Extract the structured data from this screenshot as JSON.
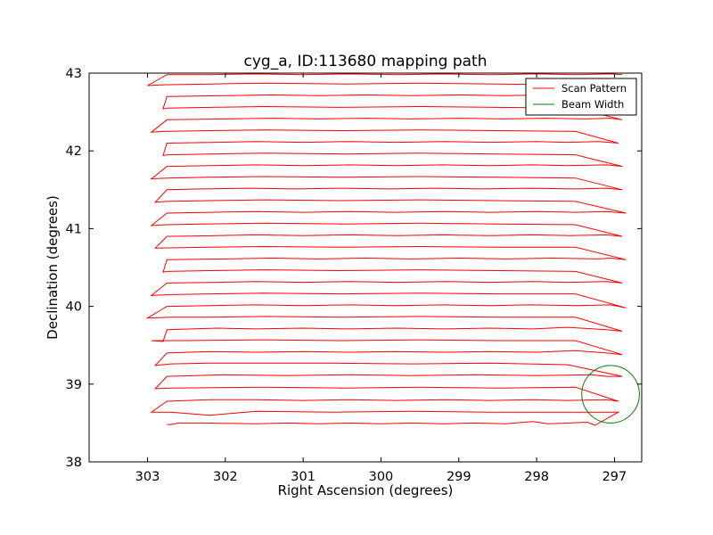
{
  "chart_data": {
    "type": "line",
    "title": "cyg_a, ID:113680 mapping path",
    "xlabel": "Right Ascension (degrees)",
    "ylabel": "Declination (degrees)",
    "xlim": [
      303.75,
      296.65
    ],
    "ylim": [
      38,
      43
    ],
    "x_ticks": [
      303,
      302,
      301,
      300,
      299,
      298,
      297
    ],
    "y_ticks": [
      38,
      39,
      40,
      41,
      42,
      43
    ],
    "grid": false,
    "legend_position": "top-right",
    "colors": {
      "scan": "#ff0000",
      "beam": "#007f00"
    },
    "series": [
      {
        "name": "Scan Pattern",
        "style": "line",
        "x": [
          302.75,
          302.7,
          302.6,
          302.3,
          301.6,
          301.2,
          300.8,
          300.4,
          300.0,
          299.6,
          299.2,
          298.8,
          298.4,
          298.05,
          297.85,
          297.35,
          297.25,
          296.95,
          297.6,
          298.6,
          299.6,
          300.6,
          301.6,
          302.2,
          302.7,
          302.95,
          302.75,
          302.2,
          301.6,
          301.0,
          300.4,
          299.8,
          299.2,
          298.6,
          298.05,
          297.6,
          297.1,
          296.95,
          297.5,
          298.5,
          299.5,
          300.5,
          301.5,
          302.7,
          302.9,
          302.75,
          302.0,
          301.2,
          300.4,
          299.6,
          298.8,
          298.0,
          297.3,
          297.1,
          296.9,
          297.6,
          298.6,
          299.6,
          300.6,
          301.2,
          301.55,
          302.2,
          302.7,
          302.9,
          302.75,
          302.2,
          301.6,
          301.0,
          300.4,
          299.8,
          299.2,
          298.6,
          298.0,
          297.5,
          297.1,
          296.9,
          297.5,
          298.5,
          299.5,
          300.5,
          301.5,
          302.5,
          302.95,
          302.8,
          302.75,
          302.1,
          301.6,
          301.0,
          300.4,
          299.8,
          299.2,
          298.6,
          298.05,
          297.6,
          297.1,
          296.9,
          297.5,
          298.5,
          299.5,
          300.5,
          301.5,
          302.2,
          302.7,
          303.0,
          302.75,
          302.2,
          301.6,
          301.0,
          300.4,
          299.8,
          299.2,
          298.6,
          298.1,
          297.5,
          297.05,
          296.85,
          297.5,
          298.5,
          299.5,
          300.5,
          301.5,
          302.2,
          302.75,
          302.95,
          302.75,
          302.1,
          301.6,
          301.0,
          300.4,
          299.8,
          299.2,
          298.6,
          298.05,
          297.6,
          297.1,
          296.9,
          297.5,
          298.5,
          299.5,
          300.5,
          301.5,
          302.2,
          302.75,
          302.8,
          302.75,
          302.0,
          301.4,
          300.8,
          300.2,
          299.6,
          299.0,
          298.4,
          297.8,
          297.2,
          297.05,
          296.85,
          297.5,
          298.5,
          299.5,
          300.5,
          301.5,
          302.2,
          302.9,
          302.75,
          302.1,
          301.6,
          301.0,
          300.4,
          299.8,
          299.2,
          298.6,
          298.05,
          297.6,
          297.1,
          296.9,
          297.5,
          298.5,
          299.5,
          300.5,
          301.5,
          302.3,
          302.75,
          302.95,
          302.75,
          302.2,
          301.6,
          301.0,
          300.4,
          299.8,
          299.2,
          298.6,
          298.0,
          297.5,
          297.1,
          296.85,
          297.5,
          298.5,
          299.5,
          300.5,
          301.5,
          302.2,
          302.75,
          302.9,
          302.75,
          302.3,
          301.7,
          301.1,
          300.5,
          299.9,
          299.3,
          298.7,
          298.1,
          297.5,
          297.1,
          296.9,
          297.5,
          298.5,
          299.5,
          300.5,
          301.5,
          302.2,
          302.75,
          302.95,
          302.75,
          302.2,
          301.6,
          301.0,
          300.4,
          299.8,
          299.2,
          298.6,
          298.05,
          297.6,
          297.1,
          296.9,
          297.5,
          298.5,
          299.5,
          300.5,
          301.5,
          302.2,
          302.75,
          302.8,
          302.75,
          302.1,
          301.6,
          301.0,
          300.4,
          299.8,
          299.2,
          298.6,
          298.0,
          297.6,
          297.2,
          296.95,
          297.5,
          298.5,
          299.5,
          300.5,
          301.5,
          302.2,
          302.8,
          302.95,
          302.75,
          302.0,
          301.4,
          300.8,
          300.2,
          299.6,
          299.0,
          298.4,
          297.9,
          297.4,
          297.05,
          296.9,
          297.5,
          298.5,
          299.5,
          300.5,
          301.5,
          302.2,
          302.75,
          302.8,
          302.75,
          302.0,
          301.4,
          300.8,
          300.2,
          299.6,
          299.0,
          298.4,
          297.8,
          297.3,
          297.1,
          296.9,
          297.5,
          298.5,
          299.5,
          300.5,
          301.5,
          302.2,
          302.8,
          303.0,
          302.75,
          302.2,
          301.6,
          301.0,
          300.4,
          299.8,
          299.2,
          298.6,
          298.0,
          297.5,
          297.05,
          296.9
        ],
        "y": [
          38.48,
          38.48,
          38.5,
          38.5,
          38.49,
          38.5,
          38.49,
          38.5,
          38.49,
          38.5,
          38.49,
          38.5,
          38.49,
          38.52,
          38.49,
          38.51,
          38.47,
          38.64,
          38.64,
          38.64,
          38.65,
          38.64,
          38.65,
          38.6,
          38.64,
          38.64,
          38.78,
          38.8,
          38.8,
          38.79,
          38.8,
          38.79,
          38.8,
          38.79,
          38.8,
          38.79,
          38.8,
          38.78,
          38.96,
          38.95,
          38.96,
          38.95,
          38.96,
          38.95,
          38.94,
          39.1,
          39.12,
          39.11,
          39.12,
          39.11,
          39.12,
          39.11,
          39.12,
          39.1,
          39.1,
          39.25,
          39.27,
          39.26,
          39.27,
          39.27,
          39.27,
          39.27,
          39.26,
          39.24,
          39.4,
          39.42,
          39.41,
          39.42,
          39.41,
          39.42,
          39.41,
          39.42,
          39.41,
          39.43,
          39.4,
          39.38,
          39.56,
          39.56,
          39.57,
          39.56,
          39.57,
          39.56,
          39.56,
          39.55,
          39.7,
          39.72,
          39.71,
          39.72,
          39.71,
          39.72,
          39.71,
          39.72,
          39.71,
          39.73,
          39.7,
          39.68,
          39.86,
          39.86,
          39.87,
          39.86,
          39.87,
          39.86,
          39.86,
          39.85,
          40.0,
          40.01,
          40.02,
          40.01,
          40.02,
          40.01,
          40.02,
          40.01,
          40.02,
          40.01,
          40.02,
          39.98,
          40.16,
          40.16,
          40.17,
          40.16,
          40.17,
          40.16,
          40.15,
          40.14,
          40.3,
          40.31,
          40.32,
          40.31,
          40.32,
          40.31,
          40.32,
          40.31,
          40.32,
          40.31,
          40.32,
          40.3,
          40.45,
          40.46,
          40.47,
          40.46,
          40.47,
          40.46,
          40.45,
          40.44,
          40.6,
          40.61,
          40.62,
          40.61,
          40.62,
          40.61,
          40.62,
          40.61,
          40.62,
          40.61,
          40.62,
          40.6,
          40.76,
          40.76,
          40.77,
          40.76,
          40.77,
          40.76,
          40.75,
          40.9,
          40.91,
          40.92,
          40.91,
          40.92,
          40.91,
          40.92,
          40.91,
          40.92,
          40.91,
          40.92,
          40.9,
          41.05,
          41.06,
          41.07,
          41.06,
          41.07,
          41.06,
          41.05,
          41.04,
          41.2,
          41.21,
          41.22,
          41.21,
          41.22,
          41.21,
          41.22,
          41.21,
          41.22,
          41.21,
          41.22,
          41.2,
          41.35,
          41.36,
          41.37,
          41.36,
          41.37,
          41.36,
          41.35,
          41.34,
          41.5,
          41.51,
          41.52,
          41.51,
          41.52,
          41.51,
          41.52,
          41.51,
          41.52,
          41.51,
          41.52,
          41.5,
          41.65,
          41.66,
          41.67,
          41.66,
          41.67,
          41.66,
          41.65,
          41.64,
          41.8,
          41.81,
          41.82,
          41.81,
          41.82,
          41.81,
          41.82,
          41.81,
          41.82,
          41.81,
          41.82,
          41.8,
          41.95,
          41.96,
          41.97,
          41.96,
          41.97,
          41.96,
          41.95,
          41.94,
          42.1,
          42.11,
          42.12,
          42.11,
          42.12,
          42.11,
          42.12,
          42.11,
          42.12,
          42.11,
          42.12,
          42.1,
          42.25,
          42.26,
          42.27,
          42.26,
          42.27,
          42.26,
          42.25,
          42.24,
          42.4,
          42.41,
          42.42,
          42.41,
          42.42,
          42.41,
          42.42,
          42.41,
          42.42,
          42.41,
          42.42,
          42.4,
          42.55,
          42.56,
          42.57,
          42.56,
          42.57,
          42.56,
          42.55,
          42.54,
          42.7,
          42.71,
          42.72,
          42.71,
          42.72,
          42.71,
          42.72,
          42.71,
          42.72,
          42.71,
          42.72,
          42.7,
          42.85,
          42.86,
          42.87,
          42.86,
          42.87,
          42.86,
          42.85,
          42.84,
          42.98,
          42.98,
          42.99,
          42.98,
          42.99,
          42.98,
          42.99,
          42.98,
          42.99,
          42.98,
          42.99,
          42.98
        ]
      },
      {
        "name": "Beam Width",
        "style": "circle",
        "center": [
          297.05,
          38.87
        ],
        "radius_deg": 0.37
      }
    ]
  }
}
